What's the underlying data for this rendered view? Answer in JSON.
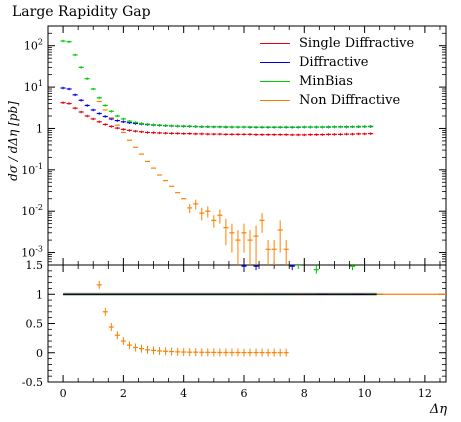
{
  "chart_data": {
    "type": "line",
    "title": "Large Rapidity Gap",
    "ylabel": "dσ / dΔη [pb]",
    "xlabel": "Δη",
    "x_ticks": [
      "0",
      "2",
      "4",
      "6",
      "8",
      "10",
      "12"
    ],
    "xlim": [
      -0.5,
      12.7
    ],
    "main": {
      "scale": "log",
      "ylim": [
        0.0005,
        300
      ],
      "yticks": [
        {
          "v": 0.001,
          "b": "10",
          "e": "-3"
        },
        {
          "v": 0.01,
          "b": "10",
          "e": "-2"
        },
        {
          "v": 0.1,
          "b": "10",
          "e": "-1"
        },
        {
          "v": 1,
          "b": "1",
          "e": ""
        },
        {
          "v": 10,
          "b": "10",
          "e": "1"
        },
        {
          "v": 100,
          "b": "10",
          "e": "2"
        }
      ],
      "series": [
        {
          "name": "Single Diffractive",
          "color": "#e8000f",
          "x": [
            0.0,
            0.2,
            0.4,
            0.6,
            0.8,
            1.0,
            1.2,
            1.4,
            1.6,
            1.8,
            2.0,
            2.2,
            2.4,
            2.6,
            2.8,
            3.0,
            3.2,
            3.4,
            3.6,
            3.8,
            4.0,
            4.2,
            4.4,
            4.6,
            4.8,
            5.0,
            5.2,
            5.4,
            5.6,
            5.8,
            6.0,
            6.2,
            6.4,
            6.6,
            6.8,
            7.0,
            7.2,
            7.4,
            7.6,
            7.8,
            8.0,
            8.2,
            8.4,
            8.6,
            8.8,
            9.0,
            9.2,
            9.4,
            9.6,
            9.8,
            10.0,
            10.2
          ],
          "y": [
            4.2,
            4.0,
            3.1,
            2.5,
            2.0,
            1.7,
            1.45,
            1.25,
            1.12,
            1.02,
            0.95,
            0.9,
            0.86,
            0.83,
            0.8,
            0.79,
            0.78,
            0.77,
            0.76,
            0.76,
            0.75,
            0.75,
            0.74,
            0.74,
            0.73,
            0.73,
            0.73,
            0.72,
            0.72,
            0.72,
            0.72,
            0.72,
            0.71,
            0.71,
            0.71,
            0.71,
            0.71,
            0.71,
            0.7,
            0.7,
            0.7,
            0.71,
            0.71,
            0.71,
            0.72,
            0.72,
            0.72,
            0.73,
            0.73,
            0.74,
            0.74,
            0.75
          ]
        },
        {
          "name": "Diffractive",
          "color": "#0000ee",
          "x": [
            0.0,
            0.2,
            0.4,
            0.6,
            0.8,
            1.0,
            1.2,
            1.4,
            1.6,
            1.8,
            2.0,
            2.2,
            2.4,
            2.6,
            2.8,
            3.0,
            3.2,
            3.4,
            3.6,
            3.8,
            4.0,
            4.2,
            4.4,
            4.6,
            4.8,
            5.0,
            5.2,
            5.4,
            5.6,
            5.8,
            6.0,
            6.2,
            6.4,
            6.6,
            6.8,
            7.0,
            7.2,
            7.4,
            7.6,
            7.8,
            8.0,
            8.2,
            8.4,
            8.6,
            8.8,
            9.0,
            9.2,
            9.4,
            9.6,
            9.8,
            10.0,
            10.2
          ],
          "y": [
            9.5,
            9.0,
            6.5,
            4.8,
            3.6,
            2.8,
            2.3,
            1.95,
            1.7,
            1.55,
            1.45,
            1.38,
            1.32,
            1.28,
            1.24,
            1.21,
            1.19,
            1.17,
            1.15,
            1.14,
            1.13,
            1.12,
            1.11,
            1.1,
            1.1,
            1.09,
            1.09,
            1.08,
            1.08,
            1.08,
            1.08,
            1.07,
            1.07,
            1.07,
            1.07,
            1.07,
            1.07,
            1.07,
            1.07,
            1.07,
            1.08,
            1.08,
            1.08,
            1.08,
            1.08,
            1.09,
            1.09,
            1.09,
            1.1,
            1.1,
            1.11,
            1.11
          ]
        },
        {
          "name": "MinBias",
          "color": "#00cc00",
          "x": [
            0.0,
            0.2,
            0.4,
            0.6,
            0.8,
            1.0,
            1.2,
            1.4,
            1.6,
            1.8,
            2.0,
            2.2,
            2.4,
            2.6,
            2.8,
            3.0,
            3.2,
            3.4,
            3.6,
            3.8,
            4.0,
            4.2,
            4.4,
            4.6,
            4.8,
            5.0,
            5.2,
            5.4,
            5.6,
            5.8,
            6.0,
            6.2,
            6.4,
            6.6,
            6.8,
            7.0,
            7.2,
            7.4,
            7.6,
            7.8,
            8.0,
            8.2,
            8.4,
            8.6,
            8.8,
            9.0,
            9.2,
            9.4,
            9.6,
            9.8,
            10.0,
            10.2
          ],
          "y": [
            130,
            125,
            60,
            30,
            16,
            9,
            5.5,
            3.6,
            2.6,
            2.0,
            1.7,
            1.5,
            1.4,
            1.32,
            1.27,
            1.23,
            1.2,
            1.18,
            1.16,
            1.15,
            1.14,
            1.13,
            1.12,
            1.11,
            1.11,
            1.1,
            1.1,
            1.1,
            1.09,
            1.09,
            1.09,
            1.09,
            1.08,
            1.08,
            1.08,
            1.08,
            1.08,
            1.08,
            1.08,
            1.08,
            1.09,
            1.09,
            1.09,
            1.09,
            1.1,
            1.1,
            1.1,
            1.11,
            1.11,
            1.12,
            1.12,
            1.13
          ]
        },
        {
          "name": "Non Diffractive",
          "color": "#ff7f00",
          "x": [
            1.2,
            1.4,
            1.6,
            1.8,
            2.0,
            2.2,
            2.4,
            2.6,
            2.8,
            3.0,
            3.2,
            3.4,
            3.6,
            3.8,
            4.0,
            4.2,
            4.4,
            4.6,
            4.8,
            5.0,
            5.2,
            5.4,
            5.6,
            5.8,
            6.0,
            6.2,
            6.4,
            6.6,
            6.8,
            7.0,
            7.2,
            7.4
          ],
          "y": [
            4.5,
            2.8,
            1.8,
            1.2,
            0.8,
            0.52,
            0.35,
            0.24,
            0.16,
            0.11,
            0.075,
            0.055,
            0.04,
            0.028,
            0.02,
            0.012,
            0.015,
            0.009,
            0.01,
            0.006,
            0.008,
            0.004,
            0.003,
            0.002,
            0.003,
            0.002,
            0.0025,
            0.006,
            0.0012,
            0.0012,
            0.0035,
            0.0012
          ],
          "err": [
            0,
            0,
            0,
            0,
            0,
            0,
            0,
            0,
            0,
            0,
            0,
            0,
            0,
            0,
            0,
            0.003,
            0.004,
            0.003,
            0.003,
            0.002,
            0.003,
            0.0025,
            0.002,
            0.0015,
            0.002,
            0.0015,
            0.002,
            0.003,
            0.0008,
            0.0008,
            0.0025,
            0.0008
          ]
        }
      ]
    },
    "ratio": {
      "ylim": [
        -0.5,
        1.5
      ],
      "yticks": [
        "-0.5",
        "0",
        "0.5",
        "1",
        "1.5"
      ],
      "ref_band": {
        "x": [
          0.0,
          10.4
        ],
        "lo": 0.97,
        "hi": 1.03
      },
      "series": [
        {
          "name": "Single Diffractive",
          "color": "#e8000f",
          "x": [
            0.0,
            0.4,
            0.8,
            1.2,
            1.6,
            2.0,
            2.4,
            2.8,
            3.2,
            3.6,
            4.0,
            4.4,
            4.8,
            5.2,
            5.6,
            6.0,
            6.4,
            6.8,
            7.2,
            7.6,
            8.0,
            8.4,
            8.8,
            9.2,
            9.6,
            10.0,
            10.2
          ],
          "y": [
            1.0,
            1.0,
            1.0,
            1.0,
            1.0,
            1.0,
            1.0,
            1.0,
            1.0,
            1.0,
            1.0,
            1.0,
            1.0,
            1.0,
            1.0,
            1.0,
            1.0,
            1.0,
            1.0,
            1.0,
            1.0,
            1.0,
            1.0,
            1.0,
            1.0,
            1.0,
            1.0
          ]
        },
        {
          "name": "Diffractive",
          "color": "#0000ee",
          "x": [
            0.0,
            0.4,
            0.8,
            1.2,
            1.6,
            2.0,
            2.4,
            2.8,
            3.2,
            3.6,
            4.0,
            4.4,
            4.8,
            5.2,
            5.6,
            5.8,
            6.0,
            6.2,
            6.4,
            6.6,
            6.8,
            7.2,
            7.6,
            8.0,
            8.4,
            8.8,
            9.2,
            9.6,
            10.0,
            10.2
          ],
          "y": [
            1.0,
            1.0,
            1.0,
            1.0,
            1.0,
            1.0,
            1.0,
            1.0,
            1.0,
            1.0,
            1.0,
            1.0,
            1.0,
            1.0,
            1.0,
            1.0,
            1.48,
            1.0,
            1.48,
            1.0,
            1.0,
            1.0,
            1.48,
            1.0,
            1.0,
            1.0,
            1.0,
            1.0,
            1.0,
            1.0
          ]
        },
        {
          "name": "MinBias",
          "color": "#00cc00",
          "x": [
            0.0,
            0.4,
            0.8,
            1.2,
            1.6,
            2.0,
            2.4,
            2.8,
            3.2,
            3.6,
            4.0,
            4.4,
            4.8,
            5.2,
            5.6,
            6.0,
            6.4,
            6.8,
            7.2,
            7.6,
            7.8,
            8.0,
            8.4,
            8.8,
            9.2,
            9.6,
            10.0,
            10.2
          ],
          "y": [
            1.0,
            1.0,
            1.0,
            1.0,
            1.0,
            1.0,
            1.0,
            1.0,
            1.0,
            1.0,
            1.0,
            1.0,
            1.0,
            1.0,
            1.0,
            1.0,
            1.0,
            1.0,
            1.0,
            1.0,
            1.5,
            1.0,
            1.42,
            1.0,
            1.0,
            1.48,
            1.0,
            1.0
          ]
        },
        {
          "name": "Non Diffractive",
          "color": "#ff7f00",
          "x": [
            1.2,
            1.4,
            1.6,
            1.8,
            2.0,
            2.2,
            2.4,
            2.6,
            2.8,
            3.0,
            3.2,
            3.4,
            3.6,
            3.8,
            4.0,
            4.2,
            4.4,
            4.6,
            4.8,
            5.0,
            5.2,
            5.4,
            5.6,
            5.8,
            6.0,
            6.2,
            6.4,
            6.6,
            6.8,
            7.0,
            7.2,
            7.4
          ],
          "y": [
            1.16,
            0.7,
            0.44,
            0.3,
            0.2,
            0.13,
            0.09,
            0.07,
            0.05,
            0.04,
            0.03,
            0.025,
            0.02,
            0.015,
            0.012,
            0.01,
            0.01,
            0.008,
            0.007,
            0.006,
            0.005,
            0.005,
            0.004,
            0.004,
            0.003,
            0.003,
            0.003,
            0.003,
            0.002,
            0.002,
            0.002,
            0.002
          ]
        }
      ],
      "extra_line": {
        "name": "Non Diffractive",
        "color": "#ff7f00",
        "x": [
          10.4,
          12.7
        ],
        "y": 1.0
      }
    }
  }
}
